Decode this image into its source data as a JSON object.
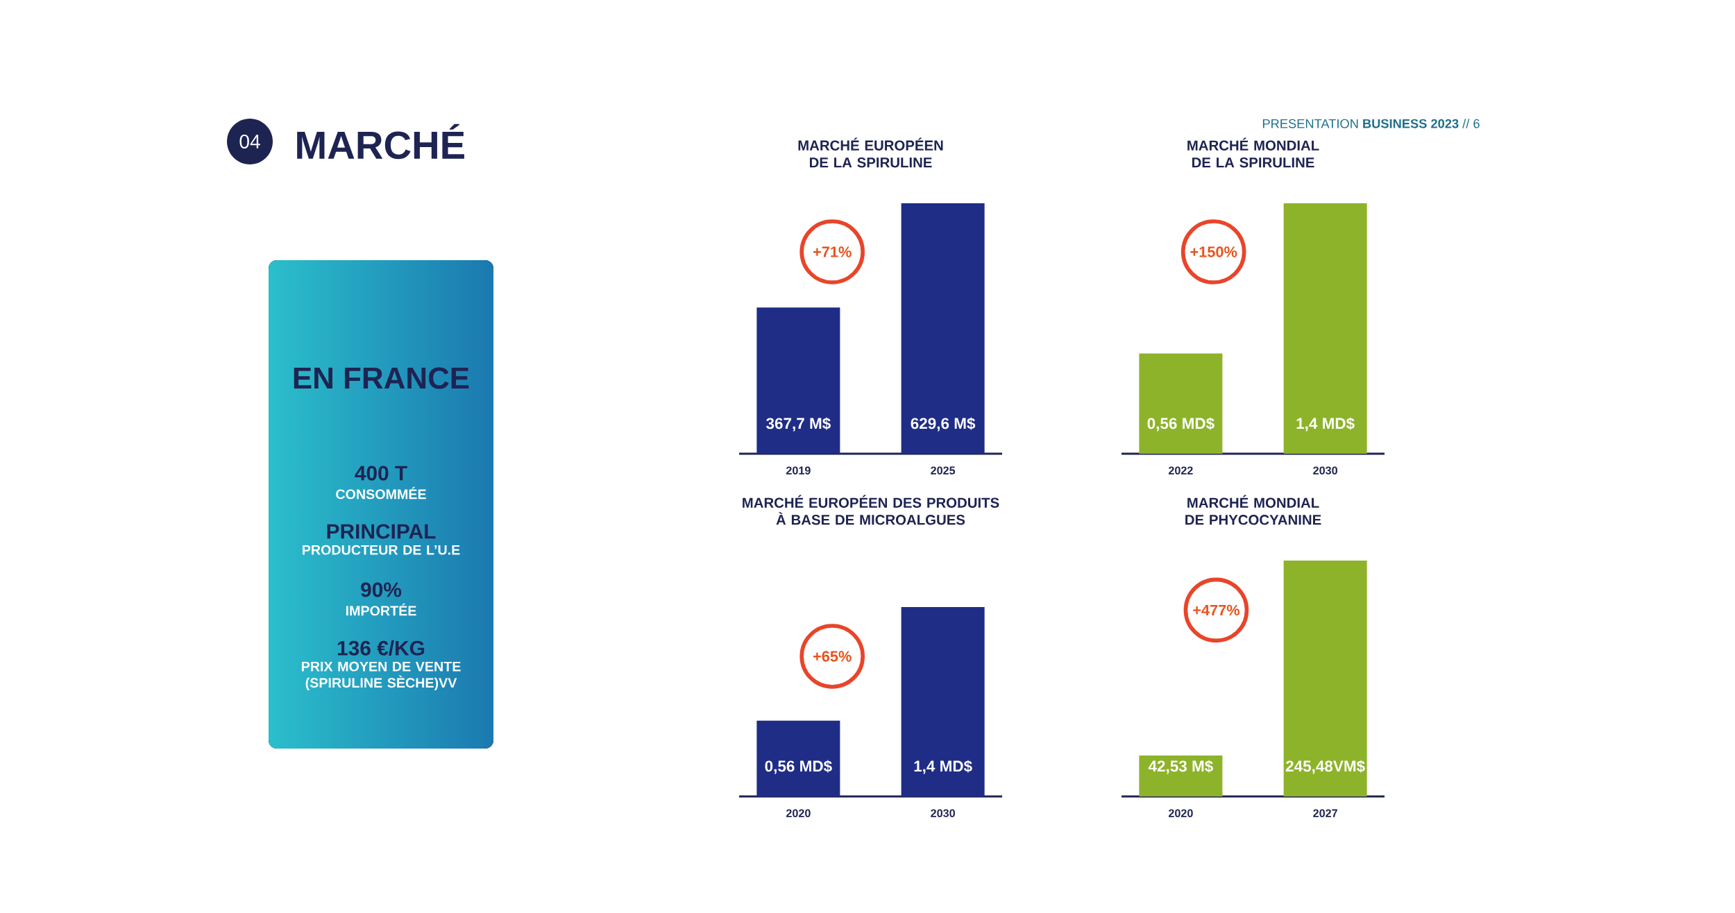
{
  "chart_data": [
    {
      "type": "other",
      "title": "MARCHÉ",
      "annotations": [
        "04",
        "PRESENTATION **BUSINESS 2023** // 6"
      ]
    },
    {
      "type": "other",
      "title": "EN FRANCE",
      "annotations": [
        "400 T",
        "CONSOMMÉE",
        "PRINCIPAL",
        "PRODUCTEUR DE L’U.E",
        "90%",
        "IMPORTÉE",
        "136 €/KG",
        "PRIX MOYEN DE VENTE (SPIRULINE SÈCHE)VV"
      ]
    },
    {
      "type": "bar",
      "title": "MARCHÉ EUROPÉEN DE LA SPIRULINE",
      "categories": [
        "2019",
        "2025"
      ],
      "values": [
        367.7,
        629.6
      ],
      "value_labels": [
        "367,7 M$",
        "629,6 M$"
      ],
      "color": "#1f2d86",
      "annotations": [
        "+71%"
      ]
    },
    {
      "type": "bar",
      "title": "MARCHÉ MONDIAL DE LA SPIRULINE",
      "categories": [
        "2022",
        "2030"
      ],
      "values": [
        0.56,
        1.4
      ],
      "value_labels": [
        "0,56 MD$",
        "1,4 MD$"
      ],
      "color": "#8db32a",
      "annotations": [
        "+150%"
      ]
    },
    {
      "type": "bar",
      "title": "MARCHÉ EUROPÉEN DES PRODUITS À BASE DE MICROALGUES",
      "categories": [
        "2020",
        "2030"
      ],
      "values": [
        0.56,
        1.4
      ],
      "value_labels": [
        "0,56 MD$",
        "1,4 MD$"
      ],
      "color": "#1f2d86",
      "annotations": [
        "+65%"
      ]
    },
    {
      "type": "bar",
      "title": "MARCHÉ MONDIAL DE PHYCOCYANINE",
      "categories": [
        "2020",
        "2027"
      ],
      "values": [
        42.53,
        245.48
      ],
      "value_labels": [
        "42,53 M$",
        "245,48VM$"
      ],
      "color": "#8db32a",
      "annotations": [
        "+477%"
      ]
    }
  ]
}
